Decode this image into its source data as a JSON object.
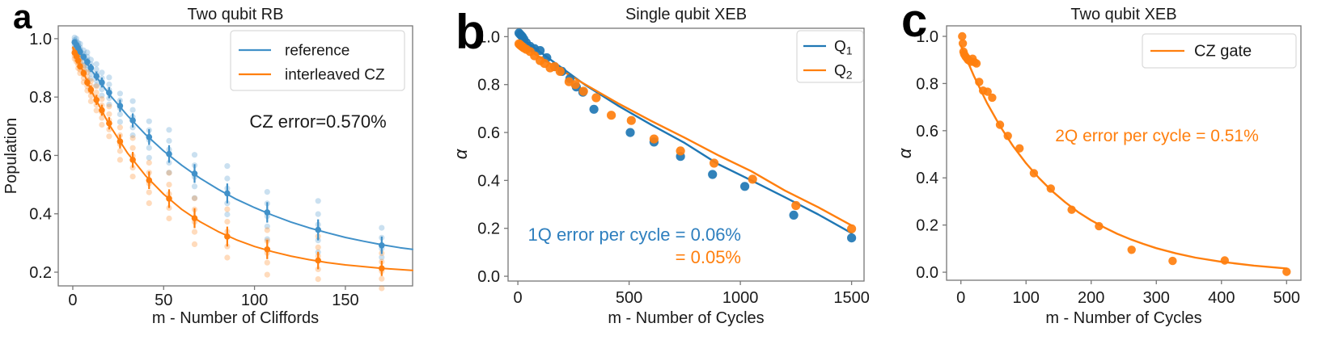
{
  "figure": {
    "background": "#ffffff"
  },
  "colors": {
    "blue_a": "#4191c9",
    "blue_b": "#1f77b4",
    "orange": "#ff7f0e",
    "text": "#1a1a1a",
    "spine": "#777777",
    "annotation_blue": "#2e7fbe",
    "legend_border": "#d9d9d9"
  },
  "chart_data": [
    {
      "id": "two-qubit-rb",
      "letter": "a",
      "type": "scatter",
      "title": "Two qubit RB",
      "xlabel": "m - Number of Cliffords",
      "ylabel": "Population",
      "ylabel_italic": false,
      "xlim": [
        -8,
        187
      ],
      "ylim": [
        0.153,
        1.044
      ],
      "xticks": [
        0,
        50,
        100,
        150
      ],
      "yticks": [
        0.2,
        0.4,
        0.6,
        0.8,
        1.0
      ],
      "ytick_decimals": 1,
      "grid": false,
      "legend_position": "upper right",
      "jitter": [
        [
          -2.1,
          -1.1,
          -0.3,
          0.7,
          1.6
        ],
        [
          -1.7,
          -0.8,
          0.4,
          1.2,
          2.2
        ]
      ],
      "legend": {
        "entries": [
          {
            "label": "reference",
            "color": "#4191c9"
          },
          {
            "label": "interleaved CZ",
            "color": "#ff7f0e"
          }
        ]
      },
      "annotations": [
        {
          "text": "CZ error=0.570%",
          "color": "#1a1a1a"
        }
      ],
      "series": [
        {
          "name": "reference",
          "color": "#4191c9",
          "m": [
            1,
            2,
            3,
            4,
            6,
            8,
            10,
            13,
            16,
            20,
            26,
            33,
            42,
            53,
            67,
            85,
            107,
            135,
            170
          ],
          "values": [
            0.988,
            0.978,
            0.968,
            0.955,
            0.938,
            0.92,
            0.9,
            0.872,
            0.85,
            0.815,
            0.77,
            0.72,
            0.663,
            0.605,
            0.538,
            0.47,
            0.405,
            0.345,
            0.292
          ],
          "errors": [
            0.008,
            0.008,
            0.009,
            0.01,
            0.011,
            0.012,
            0.014,
            0.015,
            0.017,
            0.019,
            0.021,
            0.024,
            0.027,
            0.03,
            0.032,
            0.034,
            0.035,
            0.036,
            0.03
          ],
          "fit": [
            [
              0,
              0.99
            ],
            [
              10,
              0.894
            ],
            [
              20,
              0.81
            ],
            [
              30,
              0.737
            ],
            [
              40,
              0.672
            ],
            [
              50,
              0.615
            ],
            [
              60,
              0.566
            ],
            [
              70,
              0.522
            ],
            [
              80,
              0.484
            ],
            [
              90,
              0.45
            ],
            [
              100,
              0.421
            ],
            [
              110,
              0.395
            ],
            [
              120,
              0.372
            ],
            [
              130,
              0.352
            ],
            [
              140,
              0.335
            ],
            [
              150,
              0.319
            ],
            [
              160,
              0.306
            ],
            [
              170,
              0.294
            ],
            [
              180,
              0.284
            ],
            [
              187,
              0.278
            ]
          ]
        },
        {
          "name": "interleaved CZ",
          "color": "#ff7f0e",
          "m": [
            1,
            2,
            3,
            4,
            6,
            8,
            10,
            13,
            16,
            20,
            26,
            33,
            42,
            53,
            67,
            85,
            107,
            135,
            170
          ],
          "values": [
            0.952,
            0.94,
            0.925,
            0.905,
            0.882,
            0.85,
            0.825,
            0.79,
            0.755,
            0.71,
            0.648,
            0.585,
            0.515,
            0.452,
            0.385,
            0.322,
            0.278,
            0.24,
            0.213
          ],
          "errors": [
            0.008,
            0.009,
            0.01,
            0.011,
            0.012,
            0.013,
            0.015,
            0.017,
            0.019,
            0.021,
            0.024,
            0.027,
            0.03,
            0.032,
            0.034,
            0.034,
            0.033,
            0.03,
            0.026
          ],
          "fit": [
            [
              0,
              0.97
            ],
            [
              10,
              0.824
            ],
            [
              20,
              0.706
            ],
            [
              30,
              0.609
            ],
            [
              40,
              0.531
            ],
            [
              50,
              0.467
            ],
            [
              60,
              0.415
            ],
            [
              70,
              0.373
            ],
            [
              80,
              0.339
            ],
            [
              90,
              0.311
            ],
            [
              100,
              0.288
            ],
            [
              110,
              0.27
            ],
            [
              120,
              0.255
            ],
            [
              130,
              0.243
            ],
            [
              140,
              0.233
            ],
            [
              150,
              0.225
            ],
            [
              160,
              0.219
            ],
            [
              170,
              0.213
            ],
            [
              180,
              0.209
            ],
            [
              187,
              0.206
            ]
          ]
        }
      ]
    },
    {
      "id": "single-qubit-xeb",
      "letter": "b",
      "type": "scatter",
      "title": "Single qubit XEB",
      "xlabel": "m - Number of Cycles",
      "ylabel": "α",
      "ylabel_italic": true,
      "xlim": [
        -44,
        1556
      ],
      "ylim": [
        -0.02,
        1.035
      ],
      "xticks": [
        0,
        500,
        1000,
        1500
      ],
      "yticks": [
        0.0,
        0.2,
        0.4,
        0.6,
        0.8,
        1.0
      ],
      "ytick_decimals": 1,
      "grid": false,
      "legend_position": "upper right",
      "legend": {
        "entries": [
          {
            "label": "Q",
            "sub": "1",
            "color": "#1f77b4"
          },
          {
            "label": "Q",
            "sub": "2",
            "color": "#ff7f0e"
          }
        ]
      },
      "annotations": [
        {
          "text": "1Q error per cycle = 0.06%",
          "color": "#2e7fbe"
        },
        {
          "text": "= 0.05%",
          "color": "#ff7f0e"
        }
      ],
      "series": [
        {
          "name": "Q1",
          "color": "#1f77b4",
          "m": [
            5,
            10,
            15,
            20,
            27,
            38,
            55,
            75,
            100,
            130,
            165,
            198,
            234,
            263,
            292,
            342,
            505,
            612,
            731,
            875,
            1020,
            1240,
            1500
          ],
          "values": [
            1.015,
            1.01,
            1.005,
            1.0,
            0.99,
            0.975,
            0.96,
            0.95,
            0.942,
            0.912,
            0.875,
            0.855,
            0.825,
            0.79,
            0.768,
            0.697,
            0.6,
            0.56,
            0.5,
            0.425,
            0.375,
            0.255,
            0.16
          ],
          "fit": [
            [
              0,
              1.005
            ],
            [
              150,
              0.902
            ],
            [
              300,
              0.8
            ],
            [
              450,
              0.712
            ],
            [
              600,
              0.632
            ],
            [
              750,
              0.556
            ],
            [
              900,
              0.468
            ],
            [
              1050,
              0.4
            ],
            [
              1200,
              0.33
            ],
            [
              1350,
              0.258
            ],
            [
              1500,
              0.18
            ]
          ]
        },
        {
          "name": "Q2",
          "color": "#ff7f0e",
          "m": [
            5,
            10,
            15,
            20,
            27,
            38,
            55,
            75,
            100,
            120,
            145,
            165,
            190,
            230,
            258,
            295,
            352,
            420,
            510,
            612,
            731,
            882,
            1055,
            1250,
            1500
          ],
          "values": [
            0.97,
            0.966,
            0.962,
            0.958,
            0.953,
            0.947,
            0.938,
            0.92,
            0.9,
            0.888,
            0.87,
            0.875,
            0.855,
            0.812,
            0.8,
            0.772,
            0.745,
            0.672,
            0.65,
            0.573,
            0.523,
            0.472,
            0.405,
            0.295,
            0.198
          ],
          "fit": [
            [
              0,
              0.972
            ],
            [
              150,
              0.885
            ],
            [
              300,
              0.802
            ],
            [
              450,
              0.722
            ],
            [
              600,
              0.648
            ],
            [
              750,
              0.578
            ],
            [
              900,
              0.505
            ],
            [
              1050,
              0.438
            ],
            [
              1200,
              0.358
            ],
            [
              1350,
              0.288
            ],
            [
              1500,
              0.212
            ]
          ]
        }
      ]
    },
    {
      "id": "two-qubit-xeb",
      "letter": "c",
      "type": "scatter",
      "title": "Two qubit XEB",
      "xlabel": "m - Number of Cycles",
      "ylabel": "α",
      "ylabel_italic": true,
      "xlim": [
        -22,
        522
      ],
      "ylim": [
        -0.034,
        1.0445
      ],
      "xticks": [
        0,
        100,
        200,
        300,
        400,
        500
      ],
      "yticks": [
        0.0,
        0.2,
        0.4,
        0.6,
        0.8,
        1.0
      ],
      "ytick_decimals": 1,
      "grid": false,
      "legend_position": "upper right",
      "legend": {
        "entries": [
          {
            "label": "CZ gate",
            "color": "#ff7f0e"
          }
        ]
      },
      "annotations": [
        {
          "text": "2Q error per cycle = 0.51%",
          "color": "#ff7f0e"
        }
      ],
      "series": [
        {
          "name": "CZ gate",
          "color": "#ff7f0e",
          "m": [
            2,
            3,
            4,
            5,
            7,
            9,
            11,
            13,
            15,
            18,
            21,
            24,
            28,
            34,
            41,
            48,
            60,
            72,
            90,
            112,
            138,
            170,
            212,
            262,
            325,
            405,
            500
          ],
          "values": [
            1.0,
            0.97,
            0.935,
            0.925,
            0.915,
            0.908,
            0.9,
            0.897,
            0.892,
            0.905,
            0.89,
            0.885,
            0.807,
            0.77,
            0.765,
            0.74,
            0.625,
            0.578,
            0.525,
            0.42,
            0.355,
            0.265,
            0.195,
            0.095,
            0.048,
            0.05,
            0.002
          ],
          "fit": [
            [
              0,
              0.96
            ],
            [
              20,
              0.832
            ],
            [
              40,
              0.718
            ],
            [
              60,
              0.62
            ],
            [
              80,
              0.535
            ],
            [
              100,
              0.462
            ],
            [
              120,
              0.399
            ],
            [
              140,
              0.344
            ],
            [
              160,
              0.297
            ],
            [
              180,
              0.255
            ],
            [
              200,
              0.22
            ],
            [
              220,
              0.19
            ],
            [
              240,
              0.163
            ],
            [
              260,
              0.14
            ],
            [
              280,
              0.12
            ],
            [
              300,
              0.102
            ],
            [
              330,
              0.08
            ],
            [
              360,
              0.062
            ],
            [
              400,
              0.044
            ],
            [
              450,
              0.028
            ],
            [
              500,
              0.016
            ]
          ]
        }
      ]
    }
  ]
}
